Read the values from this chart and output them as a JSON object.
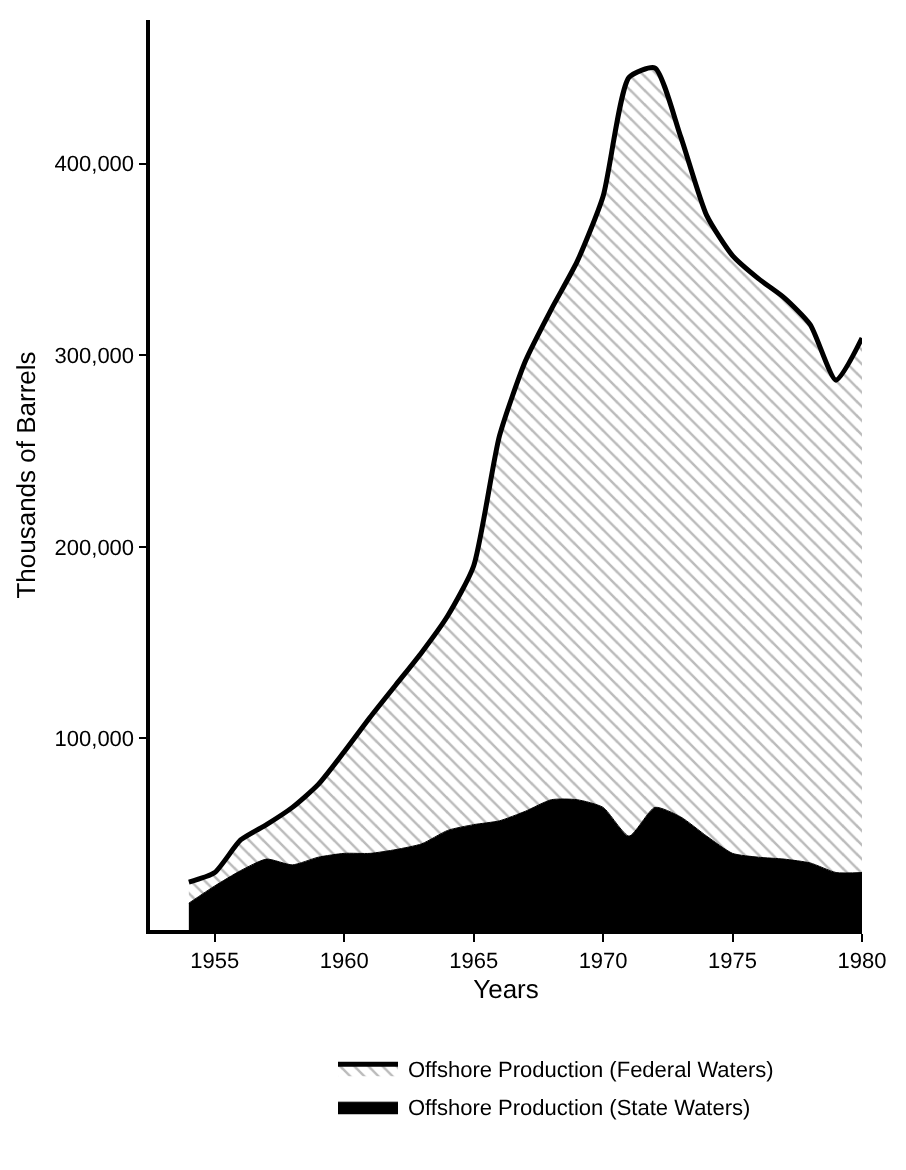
{
  "chart_data": {
    "type": "area",
    "stacked": true,
    "xlabel": "Years",
    "ylabel": "Thousands of Barrels",
    "x": [
      1954,
      1955,
      1956,
      1957,
      1958,
      1959,
      1960,
      1961,
      1962,
      1963,
      1964,
      1965,
      1966,
      1967,
      1968,
      1969,
      1970,
      1971,
      1972,
      1973,
      1974,
      1975,
      1976,
      1977,
      1978,
      1979,
      1980
    ],
    "series": [
      {
        "name": "Offshore Production (State Waters)",
        "color": "#000000",
        "values": [
          14000,
          23000,
          31000,
          37000,
          34000,
          38000,
          40000,
          40000,
          42000,
          45000,
          52000,
          55000,
          57000,
          62000,
          68000,
          68000,
          64000,
          49000,
          64000,
          59000,
          49000,
          40000,
          38000,
          37000,
          35000,
          30000,
          30000
        ]
      },
      {
        "name": "Offshore Production (Federal Waters)",
        "color": "#777777",
        "values": [
          11000,
          7000,
          16000,
          18000,
          30000,
          38000,
          53000,
          71000,
          86000,
          100000,
          112000,
          135000,
          201000,
          235000,
          256000,
          281000,
          319000,
          396000,
          386000,
          355000,
          324000,
          312000,
          302000,
          293000,
          281000,
          257000,
          279000
        ]
      }
    ],
    "xlim": [
      1952.5,
      1980
    ],
    "ylim": [
      0,
      475000
    ],
    "xticks": [
      1955,
      1960,
      1965,
      1970,
      1975,
      1980
    ],
    "yticks": [
      {
        "value": 100000,
        "label": "100,000"
      },
      {
        "value": 200000,
        "label": "200,000"
      },
      {
        "value": 300000,
        "label": "300,000"
      },
      {
        "value": 400000,
        "label": "400,000"
      }
    ],
    "legend": "bottom",
    "marker": "none",
    "line_style": "solid"
  }
}
